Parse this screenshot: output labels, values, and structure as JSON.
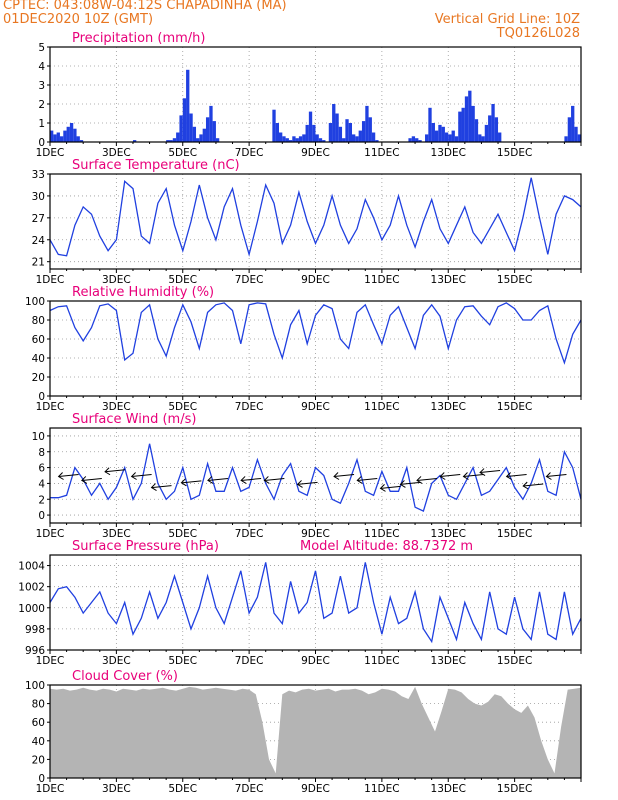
{
  "header": {
    "station_line": "CPTEC:   043:08W-04:12S   CHAPADINHA (MA)",
    "date_line": "01DEC2020 10Z (GMT)",
    "grid_line": "Vertical Grid Line: 10Z",
    "code": "TQ0126L028"
  },
  "colors": {
    "header": "#e87722",
    "title": "#e8007a",
    "series": "#2040e0",
    "cloud": "#b4b4b4"
  },
  "chart_data": [
    {
      "type": "bar",
      "title": "Precipitation (mm/h)",
      "ylim": [
        0,
        5
      ],
      "yticks": [
        "0",
        "1",
        "2",
        "3",
        "4",
        "5"
      ],
      "xticks": [
        "1DEC",
        "3DEC",
        "5DEC",
        "7DEC",
        "9DEC",
        "11DEC",
        "13DEC",
        "15DEC"
      ],
      "x": [
        0.0,
        0.1,
        0.2,
        0.3,
        0.4,
        0.5,
        0.6,
        0.7,
        0.8,
        0.9,
        1.0,
        1.1,
        1.2,
        1.3,
        1.4,
        1.5,
        1.6,
        1.7,
        1.8,
        1.9,
        2.0,
        2.1,
        2.2,
        2.3,
        2.4,
        2.5,
        2.6,
        2.7,
        2.8,
        2.9,
        3.0,
        3.1,
        3.2,
        3.3,
        3.4,
        3.5,
        3.6,
        3.7,
        3.8,
        3.9,
        4.0,
        4.1,
        4.2,
        4.3,
        4.4,
        4.5,
        4.6,
        4.7,
        4.8,
        4.9,
        5.0,
        5.1,
        5.2,
        5.3,
        5.4,
        5.5,
        5.6,
        5.7,
        5.8,
        5.9,
        6.0,
        6.1,
        6.2,
        6.3,
        6.4,
        6.5,
        6.6,
        6.7,
        6.8,
        6.9,
        7.0,
        7.1,
        7.2,
        7.3,
        7.4,
        7.5,
        7.6,
        7.7,
        7.8,
        7.9,
        8.0,
        8.1,
        8.2,
        8.3,
        8.4,
        8.5,
        8.6,
        8.7,
        8.8,
        8.9,
        9.0,
        9.1,
        9.2,
        9.3,
        9.4,
        9.5,
        9.6,
        9.7,
        9.8,
        9.9,
        10.0,
        10.1,
        10.2,
        10.3,
        10.4,
        10.5,
        10.6,
        10.7,
        10.8,
        10.9,
        11.0,
        11.1,
        11.2,
        11.3,
        11.4,
        11.5,
        11.6,
        11.7,
        11.8,
        11.9,
        12.0,
        12.1,
        12.2,
        12.3,
        12.4,
        12.5,
        12.6,
        12.7,
        12.8,
        12.9,
        13.0,
        13.1,
        13.2,
        13.3,
        13.4,
        13.5,
        13.6,
        13.7,
        13.8,
        13.9,
        14.0,
        14.1,
        14.2,
        14.3,
        14.4,
        14.5,
        14.6,
        14.7,
        14.8,
        14.9,
        15.0,
        15.1,
        15.2,
        15.3,
        15.4,
        15.5,
        15.6,
        15.7,
        15.8,
        15.9
      ],
      "values": [
        0.6,
        0.4,
        0.5,
        0.3,
        0.6,
        0.8,
        1.0,
        0.7,
        0.3,
        0.1,
        0.0,
        0.0,
        0.0,
        0.0,
        0.0,
        0.0,
        0.0,
        0.0,
        0.0,
        0.0,
        0.0,
        0.0,
        0.0,
        0.0,
        0.0,
        0.1,
        0.0,
        0.0,
        0.0,
        0.0,
        0.0,
        0.0,
        0.0,
        0.0,
        0.0,
        0.1,
        0.1,
        0.2,
        0.5,
        1.4,
        2.3,
        3.8,
        1.5,
        0.8,
        0.2,
        0.4,
        0.7,
        1.3,
        1.9,
        1.1,
        0.2,
        0.0,
        0.0,
        0.0,
        0.0,
        0.0,
        0.0,
        0.0,
        0.0,
        0.0,
        0.0,
        0.0,
        0.0,
        0.0,
        0.0,
        0.0,
        0.0,
        1.7,
        1.0,
        0.5,
        0.3,
        0.2,
        0.1,
        0.3,
        0.2,
        0.3,
        0.4,
        0.9,
        1.6,
        0.9,
        0.4,
        0.2,
        0.1,
        0.0,
        1.0,
        2.0,
        1.5,
        0.8,
        0.2,
        1.2,
        1.0,
        0.4,
        0.3,
        0.6,
        1.1,
        1.9,
        1.3,
        0.5,
        0.1,
        0.0,
        0.0,
        0.0,
        0.0,
        0.0,
        0.0,
        0.0,
        0.0,
        0.0,
        0.2,
        0.3,
        0.2,
        0.1,
        0.0,
        0.4,
        1.8,
        1.0,
        0.6,
        0.9,
        0.8,
        0.5,
        0.4,
        0.6,
        0.3,
        1.6,
        1.8,
        2.4,
        2.7,
        1.9,
        1.2,
        0.4,
        0.3,
        0.9,
        1.4,
        2.0,
        1.3,
        0.5,
        0.0,
        0.0,
        0.0,
        0.0,
        0.0,
        0.0,
        0.0,
        0.0,
        0.0,
        0.0,
        0.0,
        0.0,
        0.0,
        0.0,
        0.0,
        0.0,
        0.0,
        0.0,
        0.0,
        0.3,
        1.3,
        1.9,
        0.8,
        0.4
      ]
    },
    {
      "type": "line",
      "title": "Surface Temperature (nC)",
      "ylim": [
        20,
        33
      ],
      "yticks": [
        "21",
        "24",
        "27",
        "30",
        "33"
      ],
      "xticks": [
        "1DEC",
        "3DEC",
        "5DEC",
        "7DEC",
        "9DEC",
        "11DEC",
        "13DEC",
        "15DEC"
      ],
      "x": [
        0,
        0.25,
        0.5,
        0.75,
        1,
        1.25,
        1.5,
        1.75,
        2,
        2.25,
        2.5,
        2.75,
        3,
        3.25,
        3.5,
        3.75,
        4,
        4.25,
        4.5,
        4.75,
        5,
        5.25,
        5.5,
        5.75,
        6,
        6.25,
        6.5,
        6.75,
        7,
        7.25,
        7.5,
        7.75,
        8,
        8.25,
        8.5,
        8.75,
        9,
        9.25,
        9.5,
        9.75,
        10,
        10.25,
        10.5,
        10.75,
        11,
        11.25,
        11.5,
        11.75,
        12,
        12.25,
        12.5,
        12.75,
        13,
        13.25,
        13.5,
        13.75,
        14,
        14.25,
        14.5,
        14.75,
        15,
        15.25,
        15.5,
        15.75,
        16
      ],
      "values": [
        24,
        22,
        21.8,
        26,
        28.5,
        27.5,
        24.5,
        22.5,
        24,
        32,
        31,
        24.5,
        23.5,
        29,
        31,
        26,
        22.5,
        26.5,
        31.5,
        27,
        24,
        28.5,
        31,
        26,
        22,
        26.5,
        31.5,
        29,
        23.5,
        26,
        30.5,
        26.5,
        23.5,
        26,
        30,
        26,
        23.5,
        25.5,
        29.5,
        27,
        24,
        26,
        30,
        26,
        23,
        26.5,
        29.5,
        25.5,
        23.5,
        26,
        28.5,
        25,
        23.5,
        25.5,
        27.5,
        25,
        22.5,
        27,
        32.5,
        27,
        22,
        27.5,
        30,
        29.5,
        28.5
      ]
    },
    {
      "type": "line",
      "title": "Relative Humidity (%)",
      "ylim": [
        0,
        100
      ],
      "yticks": [
        "0",
        "20",
        "40",
        "60",
        "80",
        "100"
      ],
      "xticks": [
        "1DEC",
        "3DEC",
        "5DEC",
        "7DEC",
        "9DEC",
        "11DEC",
        "13DEC",
        "15DEC"
      ],
      "x": [
        0,
        0.25,
        0.5,
        0.75,
        1,
        1.25,
        1.5,
        1.75,
        2,
        2.25,
        2.5,
        2.75,
        3,
        3.25,
        3.5,
        3.75,
        4,
        4.25,
        4.5,
        4.75,
        5,
        5.25,
        5.5,
        5.75,
        6,
        6.25,
        6.5,
        6.75,
        7,
        7.25,
        7.5,
        7.75,
        8,
        8.25,
        8.5,
        8.75,
        9,
        9.25,
        9.5,
        9.75,
        10,
        10.25,
        10.5,
        10.75,
        11,
        11.25,
        11.5,
        11.75,
        12,
        12.25,
        12.5,
        12.75,
        13,
        13.25,
        13.5,
        13.75,
        14,
        14.25,
        14.5,
        14.75,
        15,
        15.25,
        15.5,
        15.75,
        16
      ],
      "values": [
        90,
        94,
        95,
        72,
        58,
        72,
        95,
        97,
        90,
        38,
        45,
        88,
        96,
        60,
        42,
        72,
        96,
        78,
        50,
        88,
        96,
        98,
        90,
        55,
        96,
        98,
        97,
        65,
        40,
        75,
        90,
        55,
        85,
        96,
        92,
        60,
        50,
        88,
        96,
        75,
        55,
        85,
        94,
        72,
        50,
        85,
        96,
        84,
        50,
        80,
        94,
        95,
        84,
        75,
        94,
        98,
        92,
        80,
        80,
        90,
        95,
        60,
        35,
        65,
        80
      ]
    },
    {
      "type": "line",
      "title": "Surface Wind (m/s)",
      "ylim": [
        -1,
        11
      ],
      "yticks": [
        "0",
        "2",
        "4",
        "6",
        "8",
        "10"
      ],
      "xticks": [
        "1DEC",
        "3DEC",
        "5DEC",
        "7DEC",
        "9DEC",
        "11DEC",
        "13DEC",
        "15DEC"
      ],
      "x": [
        0,
        0.25,
        0.5,
        0.75,
        1,
        1.25,
        1.5,
        1.75,
        2,
        2.25,
        2.5,
        2.75,
        3,
        3.25,
        3.5,
        3.75,
        4,
        4.25,
        4.5,
        4.75,
        5,
        5.25,
        5.5,
        5.75,
        6,
        6.25,
        6.5,
        6.75,
        7,
        7.25,
        7.5,
        7.75,
        8,
        8.25,
        8.5,
        8.75,
        9,
        9.25,
        9.5,
        9.75,
        10,
        10.25,
        10.5,
        10.75,
        11,
        11.25,
        11.5,
        11.75,
        12,
        12.25,
        12.5,
        12.75,
        13,
        13.25,
        13.5,
        13.75,
        14,
        14.25,
        14.5,
        14.75,
        15,
        15.25,
        15.5,
        15.75,
        16
      ],
      "values": [
        2.2,
        2.2,
        2.5,
        6,
        4.5,
        2.5,
        4,
        2,
        3.5,
        6,
        2,
        4,
        9,
        4,
        2,
        3,
        6,
        2,
        2.5,
        6.5,
        3,
        3,
        6,
        3,
        3.5,
        7,
        4,
        2,
        5,
        6.5,
        3,
        2.5,
        6,
        5,
        2,
        1.5,
        4,
        7,
        3,
        2.5,
        5.5,
        3,
        3,
        6,
        1,
        0.5,
        4,
        5,
        2.5,
        2,
        4,
        6,
        2.5,
        3,
        4.5,
        6,
        3.5,
        2,
        4,
        7,
        3,
        2.5,
        8,
        6,
        2
      ],
      "arrows_x": [
        0.5,
        1.2,
        1.9,
        2.7,
        3.3,
        4.2,
        5.0,
        6.0,
        6.7,
        7.7,
        8.8,
        9.5,
        10.2,
        10.8,
        11.3,
        12.0,
        12.7,
        13.2,
        14.0,
        14.5,
        15.2
      ],
      "arrows_y": [
        5,
        4.5,
        5.6,
        5,
        3.6,
        4.2,
        4.5,
        4.5,
        4.5,
        4,
        5,
        4.5,
        3.5,
        4,
        4.5,
        5,
        5,
        5.5,
        5,
        3.8,
        5
      ]
    },
    {
      "type": "line",
      "title": "Surface Pressure (hPa)",
      "annotation": "Model Altitude: 88.7372 m",
      "ylim": [
        996,
        1005
      ],
      "yticks": [
        "996",
        "998",
        "1000",
        "1002",
        "1004"
      ],
      "xticks": [
        "1DEC",
        "3DEC",
        "5DEC",
        "7DEC",
        "9DEC",
        "11DEC",
        "13DEC",
        "15DEC"
      ],
      "x": [
        0,
        0.25,
        0.5,
        0.75,
        1,
        1.25,
        1.5,
        1.75,
        2,
        2.25,
        2.5,
        2.75,
        3,
        3.25,
        3.5,
        3.75,
        4,
        4.25,
        4.5,
        4.75,
        5,
        5.25,
        5.5,
        5.75,
        6,
        6.25,
        6.5,
        6.75,
        7,
        7.25,
        7.5,
        7.75,
        8,
        8.25,
        8.5,
        8.75,
        9,
        9.25,
        9.5,
        9.75,
        10,
        10.25,
        10.5,
        10.75,
        11,
        11.25,
        11.5,
        11.75,
        12,
        12.25,
        12.5,
        12.75,
        13,
        13.25,
        13.5,
        13.75,
        14,
        14.25,
        14.5,
        14.75,
        15,
        15.25,
        15.5,
        15.75,
        16
      ],
      "values": [
        1000.5,
        1001.8,
        1002,
        1001,
        999.5,
        1000.5,
        1001.5,
        999.5,
        998.5,
        1000.5,
        997.5,
        999,
        1001.5,
        999,
        1000.5,
        1003,
        1000.5,
        998,
        1000,
        1003,
        1000,
        998.5,
        1001,
        1003.5,
        999.5,
        1001,
        1004.3,
        999.5,
        998.5,
        1002.5,
        999.5,
        1000.5,
        1003.5,
        999,
        999.5,
        1003,
        999.5,
        1000,
        1004.3,
        1000.5,
        997.5,
        1001,
        998.5,
        999,
        1001.5,
        998,
        996.8,
        1001,
        999,
        997,
        1000.5,
        998.5,
        997,
        1001.5,
        998,
        997.5,
        1001,
        998,
        997,
        1001.5,
        997.5,
        997,
        1001.5,
        997.5,
        999
      ]
    },
    {
      "type": "area",
      "title": "Cloud Cover (%)",
      "ylim": [
        0,
        100
      ],
      "yticks": [
        "0",
        "20",
        "40",
        "60",
        "80",
        "100"
      ],
      "xticks": [
        "1DEC",
        "3DEC",
        "5DEC",
        "7DEC",
        "9DEC",
        "11DEC",
        "13DEC",
        "15DEC"
      ],
      "x": [
        0,
        0.2,
        0.4,
        0.6,
        0.8,
        1,
        1.2,
        1.4,
        1.6,
        1.8,
        2,
        2.2,
        2.4,
        2.6,
        2.8,
        3,
        3.2,
        3.4,
        3.6,
        3.8,
        4,
        4.2,
        4.4,
        4.6,
        4.8,
        5,
        5.2,
        5.4,
        5.6,
        5.8,
        6,
        6.2,
        6.4,
        6.6,
        6.8,
        7,
        7.2,
        7.4,
        7.6,
        7.8,
        8,
        8.2,
        8.4,
        8.6,
        8.8,
        9,
        9.2,
        9.4,
        9.6,
        9.8,
        10,
        10.2,
        10.4,
        10.6,
        10.8,
        11,
        11.2,
        11.4,
        11.6,
        11.8,
        12,
        12.2,
        12.4,
        12.6,
        12.8,
        13,
        13.2,
        13.4,
        13.6,
        13.8,
        14,
        14.2,
        14.4,
        14.6,
        14.8,
        15,
        15.2,
        15.4,
        15.6,
        15.8,
        16
      ],
      "values": [
        96,
        95,
        96,
        94,
        95,
        97,
        95,
        94,
        96,
        95,
        93,
        96,
        95,
        94,
        96,
        95,
        96,
        97,
        95,
        94,
        96,
        98,
        97,
        95,
        96,
        97,
        96,
        95,
        94,
        96,
        95,
        90,
        60,
        20,
        5,
        90,
        94,
        92,
        95,
        96,
        94,
        95,
        96,
        93,
        95,
        95,
        96,
        94,
        90,
        92,
        96,
        95,
        93,
        88,
        85,
        98,
        80,
        65,
        50,
        72,
        96,
        95,
        92,
        85,
        80,
        78,
        82,
        90,
        88,
        80,
        74,
        70,
        78,
        65,
        40,
        20,
        5,
        55,
        95,
        96,
        97
      ]
    }
  ]
}
